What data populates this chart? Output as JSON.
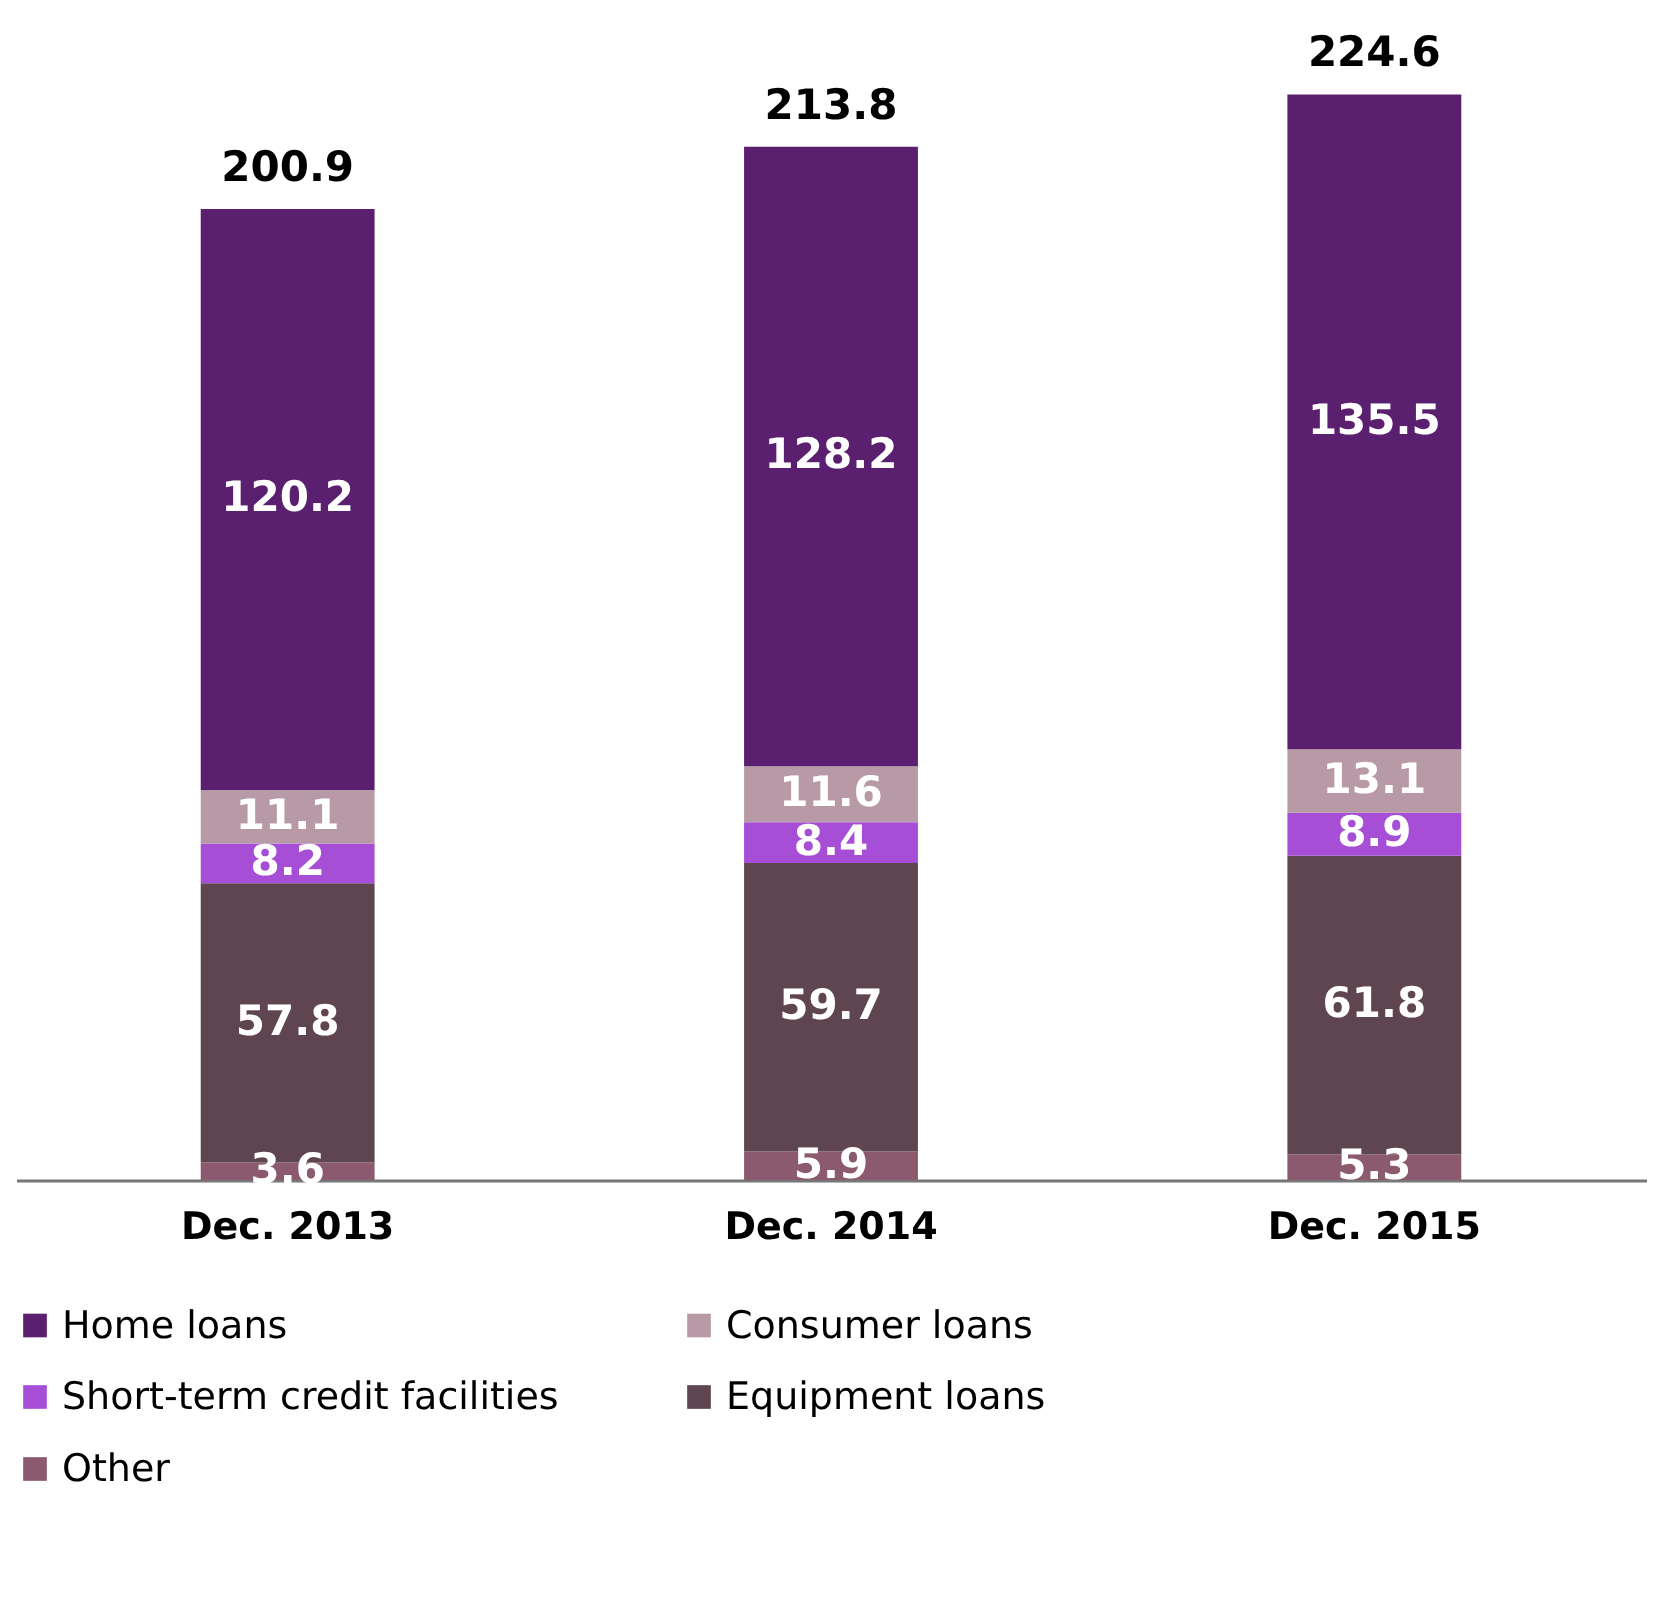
{
  "chart_data": {
    "type": "bar",
    "stacked": true,
    "data_labels": true,
    "legend": "bottom",
    "categories": [
      "Dec. 2013",
      "Dec. 2014",
      "Dec. 2015"
    ],
    "series": [
      {
        "name": "Other",
        "color": "#8b5a6e",
        "values": [
          3.6,
          5.9,
          5.3
        ]
      },
      {
        "name": "Equipment loans",
        "color": "#5e4550",
        "values": [
          57.8,
          59.7,
          61.8
        ]
      },
      {
        "name": "Short-term credit facilities",
        "color": "#a64fd6",
        "values": [
          8.2,
          8.4,
          8.9
        ]
      },
      {
        "name": "Consumer loans",
        "color": "#b89aa6",
        "values": [
          11.1,
          11.6,
          13.1
        ]
      },
      {
        "name": "Home loans",
        "color": "#5a1f6e",
        "values": [
          120.2,
          128.2,
          135.5
        ]
      }
    ],
    "totals": [
      "200.9",
      "213.8",
      "224.6"
    ]
  }
}
